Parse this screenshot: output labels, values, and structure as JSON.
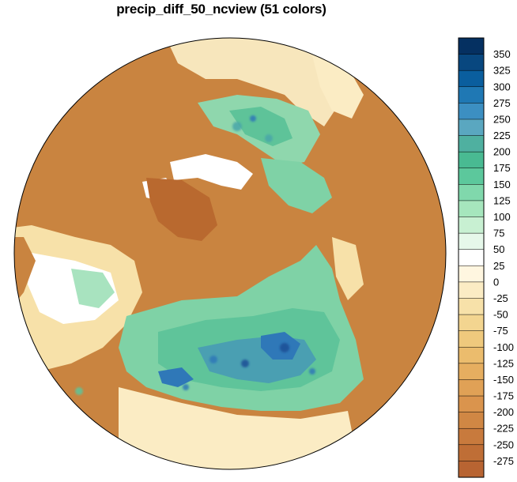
{
  "title": "precip_diff_50_ncview (51 colors)",
  "colorbar": {
    "tick_labels": [
      "350",
      "325",
      "300",
      "275",
      "250",
      "225",
      "200",
      "175",
      "150",
      "125",
      "100",
      "75",
      "50",
      "25",
      "0",
      "-25",
      "-50",
      "-75",
      "-100",
      "-125",
      "-150",
      "-175",
      "-200",
      "-225",
      "-250",
      "-275"
    ],
    "colors": [
      "#053061",
      "#08477f",
      "#0a5e9e",
      "#1f78b4",
      "#3c8fc2",
      "#5aa7c0",
      "#4fb0a0",
      "#49ba92",
      "#5cc89c",
      "#80d8ac",
      "#a6e6bd",
      "#c8f0d2",
      "#e6f8ea",
      "#ffffff",
      "#fff6e0",
      "#fbecc4",
      "#f7e1a9",
      "#f3d590",
      "#efc97d",
      "#ebbc6d",
      "#e6ae60",
      "#e0a156",
      "#da944d",
      "#d08744",
      "#c87a3d",
      "#bf6e36",
      "#b86432"
    ]
  },
  "map": {
    "projection": "polar",
    "ocean_color": "#c98440",
    "land_palette": [
      "#f7e6bc",
      "#fff6e0",
      "#ffffff",
      "#cfefd9",
      "#8dd8ad",
      "#5fc49a",
      "#4aa6a9",
      "#2f78b8",
      "#1b4f96"
    ]
  }
}
